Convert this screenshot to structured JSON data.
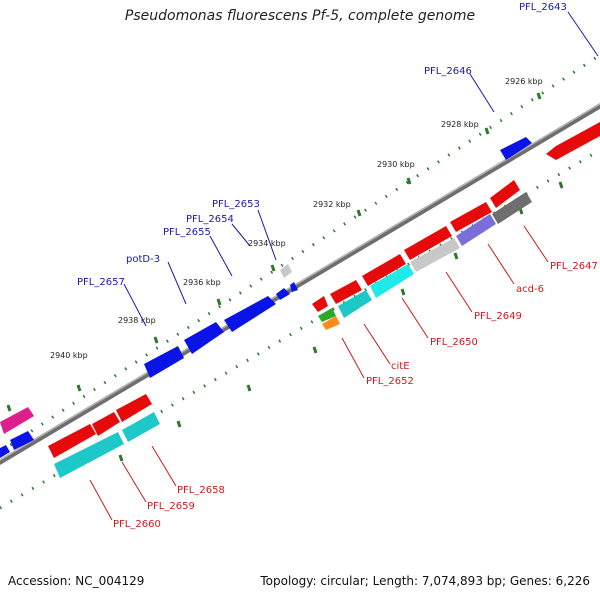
{
  "title": "Pseudomonas fluorescens Pf-5, complete genome",
  "footer": {
    "accession": "Accession: NC_004129",
    "summary": "Topology: circular; Length: 7,074,893 bp; Genes: 6,226"
  },
  "colors": {
    "blue_gene": "#0a14e6",
    "red_gene": "#e60a0a",
    "cyan_gene": "#1ec8c8",
    "label_blue": "#1a1aa8",
    "label_red": "#cc1a1a",
    "tick_green": "#2a7a2a",
    "backbone": "#7a7a7a"
  },
  "ticks": [
    "2926 kbp",
    "2928 kbp",
    "2930 kbp",
    "2932 kbp",
    "2934 kbp",
    "2936 kbp",
    "2938 kbp",
    "2940 kbp"
  ],
  "forward_labels": [
    "PFL_2643",
    "PFL_2646",
    "PFL_2653",
    "PFL_2654",
    "PFL_2655",
    "potD-3",
    "PFL_2657"
  ],
  "reverse_labels": [
    "PFL_2647",
    "acd-6",
    "PFL_2649",
    "PFL_2650",
    "citE",
    "PFL_2652",
    "PFL_2658",
    "PFL_2659",
    "PFL_2660"
  ]
}
